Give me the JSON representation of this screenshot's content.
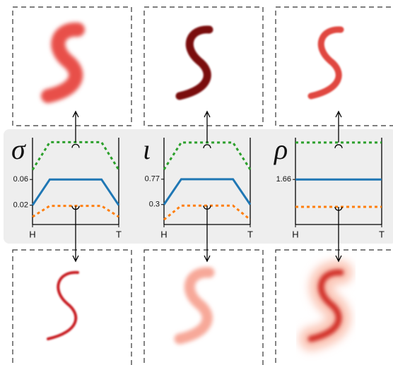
{
  "chart_data": [
    {
      "type": "line",
      "title": "σ",
      "x": [
        0,
        0.2,
        0.8,
        1
      ],
      "xlim": [
        0,
        1
      ],
      "xticks": [
        {
          "value": 0,
          "label": "H"
        },
        {
          "value": 1,
          "label": "T"
        }
      ],
      "ylim": [
        -0.01,
        0.125
      ],
      "yticks": [
        0.02,
        0.06
      ],
      "series": [
        {
          "color": "#2ca02c",
          "linestyle": "dotted",
          "values": [
            0.075,
            0.118,
            0.118,
            0.075
          ]
        },
        {
          "color": "#1f77b4",
          "linestyle": "solid",
          "values": [
            0.02,
            0.06,
            0.06,
            0.02
          ]
        },
        {
          "color": "#ff7f0e",
          "linestyle": "dotted",
          "values": [
            0.002,
            0.019,
            0.019,
            0.002
          ]
        }
      ]
    },
    {
      "type": "line",
      "title": "ι",
      "x": [
        0,
        0.2,
        0.8,
        1
      ],
      "xlim": [
        0,
        1
      ],
      "xticks": [
        {
          "value": 0,
          "label": "H"
        },
        {
          "value": 1,
          "label": "T"
        }
      ],
      "ylim": [
        -0.07,
        1.54
      ],
      "yticks": [
        0.3,
        0.77
      ],
      "series": [
        {
          "color": "#2ca02c",
          "linestyle": "dotted",
          "values": [
            0.95,
            1.45,
            1.45,
            0.95
          ]
        },
        {
          "color": "#1f77b4",
          "linestyle": "solid",
          "values": [
            0.3,
            0.77,
            0.77,
            0.3
          ]
        },
        {
          "color": "#ff7f0e",
          "linestyle": "dotted",
          "values": [
            0.02,
            0.28,
            0.28,
            0.02
          ]
        }
      ]
    },
    {
      "type": "line",
      "title": "ρ",
      "x": [
        0,
        0.2,
        0.8,
        1
      ],
      "xlim": [
        0,
        1
      ],
      "xticks": [
        {
          "value": 0,
          "label": "H"
        },
        {
          "value": 1,
          "label": "T"
        }
      ],
      "ylim": [
        0,
        3.2
      ],
      "yticks": [
        1.66
      ],
      "series": [
        {
          "color": "#2ca02c",
          "linestyle": "dotted",
          "values": [
            3.02,
            3.02,
            3.02,
            3.02
          ]
        },
        {
          "color": "#1f77b4",
          "linestyle": "solid",
          "values": [
            1.66,
            1.66,
            1.66,
            1.66
          ]
        },
        {
          "color": "#ff7f0e",
          "linestyle": "dotted",
          "values": [
            0.65,
            0.65,
            0.65,
            0.65
          ]
        }
      ]
    }
  ]
}
